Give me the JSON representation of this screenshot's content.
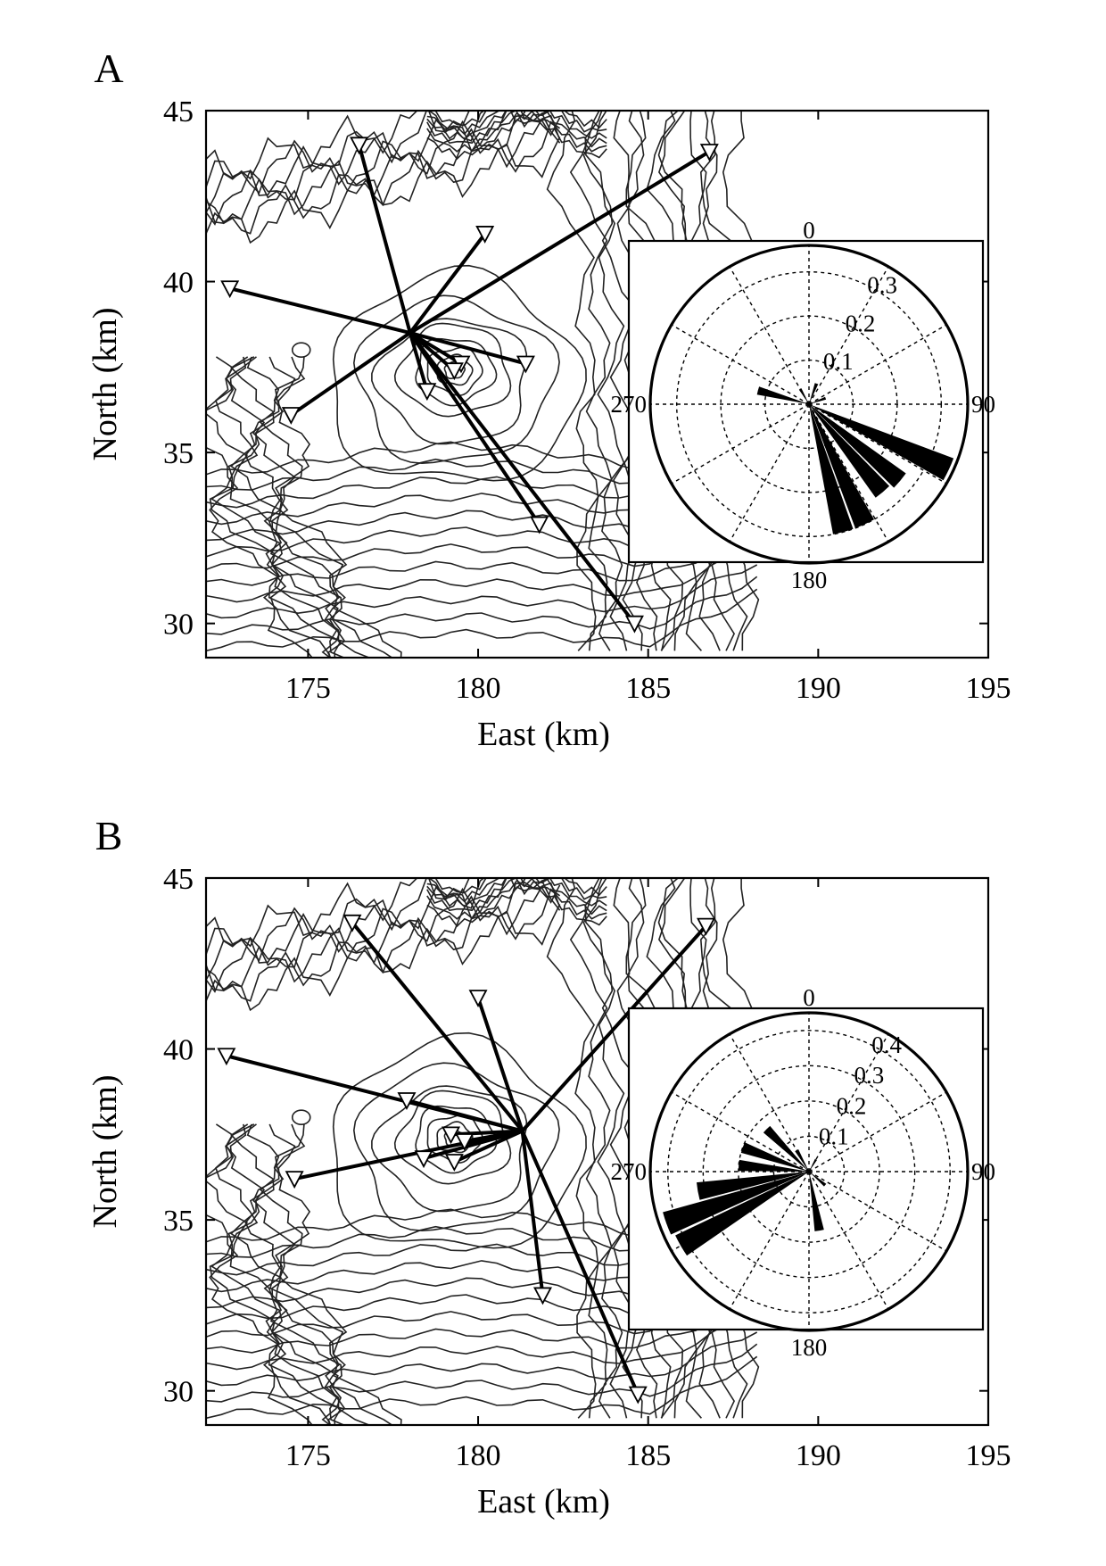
{
  "panels": [
    {
      "letter": "A",
      "xlabel": "East (km)",
      "ylabel": "North (km)",
      "xlim": [
        172,
        195
      ],
      "ylim": [
        29,
        45
      ],
      "xticks": [
        175,
        180,
        185,
        190,
        195
      ],
      "yticks": [
        30,
        35,
        40,
        45
      ],
      "source": [
        178,
        38.5
      ],
      "stations": [
        [
          176.5,
          44.0
        ],
        [
          186.8,
          43.8
        ],
        [
          180.2,
          41.4
        ],
        [
          172.7,
          39.8
        ],
        [
          181.4,
          37.6
        ],
        [
          179.5,
          37.6
        ],
        [
          179.3,
          37.4
        ],
        [
          178.5,
          36.8
        ],
        [
          174.5,
          36.1
        ],
        [
          181.8,
          32.9
        ],
        [
          184.6,
          30.0
        ]
      ],
      "rose": {
        "ring_labels": [
          "0.1",
          "0.2",
          "0.3"
        ],
        "rmax": 0.36,
        "angle_labels": [
          "0",
          "90",
          "180",
          "270"
        ],
        "bars": [
          {
            "angle": 20,
            "value": 0.05
          },
          {
            "angle": 70,
            "value": 0.04
          },
          {
            "angle": 115,
            "value": 0.35
          },
          {
            "angle": 130,
            "value": 0.27
          },
          {
            "angle": 140,
            "value": 0.26
          },
          {
            "angle": 155,
            "value": 0.3
          },
          {
            "angle": 165,
            "value": 0.3
          },
          {
            "angle": 285,
            "value": 0.12
          },
          {
            "angle": 330,
            "value": 0.04
          }
        ]
      }
    },
    {
      "letter": "B",
      "xlabel": "East (km)",
      "ylabel": "North (km)",
      "xlim": [
        172,
        195
      ],
      "ylim": [
        29,
        45
      ],
      "xticks": [
        175,
        180,
        185,
        190,
        195
      ],
      "yticks": [
        30,
        35,
        40,
        45
      ],
      "source": [
        181.3,
        37.6
      ],
      "stations": [
        [
          176.3,
          43.7
        ],
        [
          186.7,
          43.6
        ],
        [
          180.0,
          41.5
        ],
        [
          172.6,
          39.8
        ],
        [
          177.9,
          38.5
        ],
        [
          179.2,
          37.5
        ],
        [
          179.6,
          37.3
        ],
        [
          178.4,
          36.8
        ],
        [
          179.3,
          36.7
        ],
        [
          174.6,
          36.2
        ],
        [
          181.9,
          32.8
        ],
        [
          184.7,
          29.9
        ]
      ],
      "rose": {
        "ring_labels": [
          "0.1",
          "0.2",
          "0.3",
          "0.4"
        ],
        "rmax": 0.45,
        "angle_labels": [
          "0",
          "90",
          "180",
          "270"
        ],
        "bars": [
          {
            "angle": 240,
            "value": 0.42
          },
          {
            "angle": 250,
            "value": 0.43
          },
          {
            "angle": 260,
            "value": 0.32
          },
          {
            "angle": 275,
            "value": 0.2
          },
          {
            "angle": 290,
            "value": 0.2
          },
          {
            "angle": 315,
            "value": 0.17
          },
          {
            "angle": 330,
            "value": 0.07
          },
          {
            "angle": 170,
            "value": 0.17
          },
          {
            "angle": 130,
            "value": 0.06
          },
          {
            "angle": 30,
            "value": 0.04
          }
        ]
      }
    }
  ]
}
